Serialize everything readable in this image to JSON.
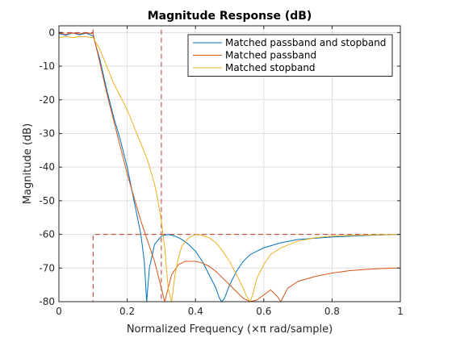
{
  "chart_data": {
    "type": "line",
    "title": "Magnitude Response (dB)",
    "xlabel": "Normalized Frequency (×π rad/sample)",
    "ylabel": "Magnitude (dB)",
    "xlim": [
      0,
      1
    ],
    "ylim": [
      -80,
      2
    ],
    "xticks": [
      0,
      0.2,
      0.4,
      0.6,
      0.8,
      1
    ],
    "xtick_labels": [
      "0",
      "0.2",
      "0.4",
      "0.6",
      "0.8",
      "1"
    ],
    "yticks": [
      0,
      -10,
      -20,
      -30,
      -40,
      -50,
      -60,
      -70,
      -80
    ],
    "ytick_labels": [
      "0",
      "-10",
      "-20",
      "-30",
      "-40",
      "-50",
      "-60",
      "-70",
      "-80"
    ],
    "grid": true,
    "legend_position": "top-right",
    "series": [
      {
        "name": "Matched passband and stopband",
        "color": "#0072BD",
        "x": [
          0,
          0.02,
          0.04,
          0.06,
          0.08,
          0.1,
          0.12,
          0.14,
          0.16,
          0.18,
          0.2,
          0.22,
          0.24,
          0.25,
          0.257,
          0.265,
          0.28,
          0.3,
          0.32,
          0.34,
          0.36,
          0.38,
          0.4,
          0.42,
          0.44,
          0.46,
          0.47,
          0.477,
          0.485,
          0.5,
          0.52,
          0.54,
          0.56,
          0.6,
          0.65,
          0.7,
          0.8,
          0.9,
          1
        ],
        "y": [
          -0.3,
          -0.8,
          -0.1,
          -0.7,
          -0.2,
          -1,
          -8,
          -17,
          -25,
          -32,
          -40,
          -50,
          -60,
          -68,
          -80,
          -70,
          -63,
          -60.5,
          -60,
          -60.5,
          -61.5,
          -63,
          -65,
          -68,
          -72,
          -76,
          -79,
          -80,
          -79,
          -75,
          -71,
          -68,
          -66,
          -64,
          -62.5,
          -61.5,
          -60.8,
          -60.3,
          -60
        ]
      },
      {
        "name": "Matched passband",
        "color": "#D95319",
        "x": [
          0,
          0.02,
          0.04,
          0.06,
          0.08,
          0.1,
          0.12,
          0.14,
          0.16,
          0.18,
          0.2,
          0.22,
          0.24,
          0.26,
          0.28,
          0.3,
          0.31,
          0.32,
          0.33,
          0.35,
          0.37,
          0.4,
          0.42,
          0.44,
          0.46,
          0.48,
          0.5,
          0.52,
          0.54,
          0.56,
          0.58,
          0.6,
          0.62,
          0.64,
          0.65,
          0.66,
          0.67,
          0.7,
          0.75,
          0.8,
          0.85,
          0.9,
          0.95,
          1
        ],
        "y": [
          -0.2,
          -0.5,
          -0.1,
          -0.4,
          -0.1,
          -0.3,
          -9,
          -18,
          -26,
          -34,
          -42,
          -49,
          -56,
          -62,
          -68,
          -76,
          -80,
          -76,
          -72,
          -69,
          -68,
          -68,
          -68.5,
          -69.5,
          -71,
          -73,
          -75,
          -77,
          -79,
          -80,
          -79.5,
          -78,
          -76.5,
          -78.5,
          -80,
          -78,
          -76,
          -74,
          -72.5,
          -71.5,
          -70.8,
          -70.4,
          -70.1,
          -70
        ]
      },
      {
        "name": "Matched stopband",
        "color": "#EDB120",
        "x": [
          0,
          0.02,
          0.04,
          0.06,
          0.08,
          0.1,
          0.12,
          0.14,
          0.16,
          0.18,
          0.2,
          0.22,
          0.24,
          0.26,
          0.28,
          0.29,
          0.3,
          0.31,
          0.32,
          0.33,
          0.34,
          0.35,
          0.36,
          0.38,
          0.4,
          0.42,
          0.44,
          0.46,
          0.48,
          0.5,
          0.52,
          0.54,
          0.55,
          0.56,
          0.57,
          0.58,
          0.6,
          0.62,
          0.65,
          0.7,
          0.75,
          0.8,
          0.9,
          1
        ],
        "y": [
          -1.5,
          -1.2,
          -1.5,
          -1.2,
          -1.3,
          -1.5,
          -5,
          -10,
          -15,
          -19,
          -23,
          -28,
          -33,
          -38,
          -45,
          -50,
          -56,
          -64,
          -76,
          -80,
          -72,
          -67,
          -63.5,
          -61,
          -60,
          -60.3,
          -61,
          -62.5,
          -65,
          -68,
          -72,
          -76,
          -78.5,
          -80,
          -77,
          -73,
          -69,
          -66,
          -64,
          -62,
          -61,
          -60.5,
          -60.2,
          -60
        ]
      },
      {
        "name": "",
        "color": "#C0392B",
        "style": "dashed",
        "x": [
          0,
          0.1,
          0.1,
          0.3,
          0.3,
          0.1,
          0.1,
          0.3,
          0.3,
          1
        ],
        "y": [
          0,
          0,
          2,
          2,
          -60,
          -60,
          -80,
          -80,
          -60,
          -60
        ]
      }
    ]
  }
}
